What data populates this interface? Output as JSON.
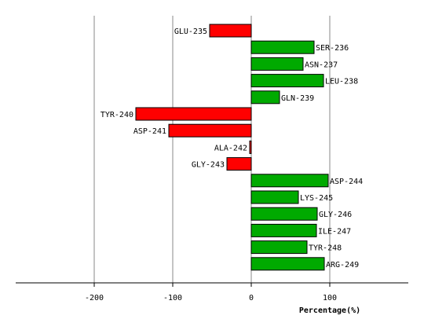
{
  "chart_data": {
    "type": "bar",
    "orientation": "horizontal",
    "xlabel": "Percentage(%)",
    "xlim": [
      -300,
      200
    ],
    "xticks": [
      -200,
      -100,
      0,
      100
    ],
    "grid": "vertical",
    "categories": [
      "GLU-235",
      "SER-236",
      "ASN-237",
      "LEU-238",
      "GLN-239",
      "TYR-240",
      "ASP-241",
      "ALA-242",
      "GLY-243",
      "ASP-244",
      "LYS-245",
      "GLY-246",
      "ILE-247",
      "TYR-248",
      "ARG-249"
    ],
    "values": [
      -53,
      80,
      66,
      92,
      36,
      -147,
      -105,
      -2,
      -31,
      98,
      60,
      84,
      83,
      71,
      93
    ],
    "colors": {
      "positive": "#00aa00",
      "negative": "#ff0000",
      "outline": "#000000",
      "grid": "#888888"
    }
  }
}
